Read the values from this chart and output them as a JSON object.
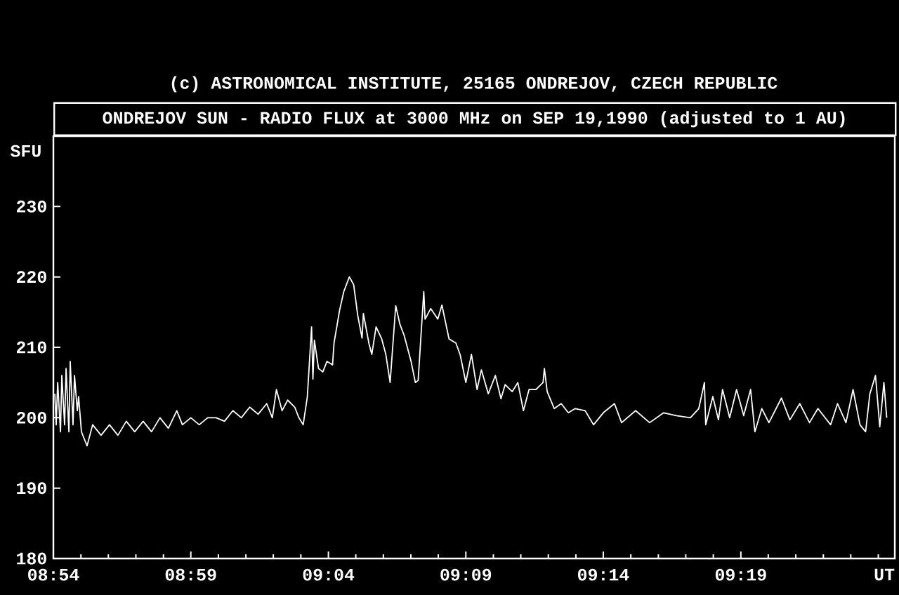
{
  "chart_data": {
    "type": "line",
    "title": "(c) ASTRONOMICAL INSTITUTE, 25165 ONDREJOV, CZECH REPUBLIC",
    "subtitle": "ONDREJOV SUN - RADIO FLUX at 3000 MHz on SEP 19,1990 (adjusted to 1 AU)",
    "ylabel": "SFU",
    "x": [
      8.9009,
      8.9017,
      8.9026,
      8.9043,
      8.9051,
      8.9068,
      8.9077,
      8.9094,
      8.9102,
      8.9119,
      8.9128,
      8.9145,
      8.9153,
      8.917,
      8.9204,
      8.9238,
      8.9289,
      8.934,
      8.9391,
      8.9442,
      8.9493,
      8.9544,
      8.9595,
      8.9646,
      8.9697,
      8.9748,
      8.9782,
      8.9833,
      8.9884,
      8.9935,
      8.9986,
      9.0037,
      9.0088,
      9.0139,
      9.019,
      9.0241,
      9.0293,
      9.0327,
      9.0352,
      9.0386,
      9.042,
      9.0463,
      9.0488,
      9.0514,
      9.0539,
      9.0565,
      9.0573,
      9.0582,
      9.0607,
      9.0633,
      9.0658,
      9.0692,
      9.0701,
      9.0735,
      9.076,
      9.0794,
      9.082,
      9.0845,
      9.0871,
      9.0879,
      9.0913,
      9.093,
      9.0956,
      9.099,
      9.1015,
      9.1041,
      9.1075,
      9.11,
      9.1126,
      9.1168,
      9.1194,
      9.1211,
      9.1245,
      9.1253,
      9.1287,
      9.133,
      9.1355,
      9.1398,
      9.144,
      9.1466,
      9.15,
      9.1534,
      9.1568,
      9.1594,
      9.1636,
      9.1679,
      9.1713,
      9.1738,
      9.1781,
      9.1815,
      9.1849,
      9.1883,
      9.1925,
      9.1968,
      9.1976,
      9.1993,
      9.2036,
      9.2078,
      9.2121,
      9.2163,
      9.2223,
      9.2274,
      9.2333,
      9.2401,
      9.2444,
      9.2529,
      9.2614,
      9.2699,
      9.2776,
      9.2861,
      9.2912,
      9.2946,
      9.2954,
      9.2997,
      9.3031,
      9.3056,
      9.3099,
      9.3141,
      9.3184,
      9.3226,
      9.3252,
      9.3294,
      9.3337,
      9.3413,
      9.3464,
      9.3524,
      9.3583,
      9.3634,
      9.3711,
      9.3753,
      9.3804,
      9.3847,
      9.3889,
      9.3923,
      9.3949,
      9.3983,
      9.4009,
      9.4034,
      9.4051
    ],
    "series": [
      {
        "color": "#ffffff",
        "values": [
          203.4,
          199,
          205,
          198,
          206,
          199,
          207,
          198,
          208,
          199,
          206,
          201,
          203,
          198,
          196,
          199,
          197.5,
          199,
          197.5,
          199.5,
          198,
          199.5,
          198,
          200,
          198.5,
          201,
          199,
          200,
          199,
          200,
          200,
          199.5,
          201,
          200,
          201.5,
          200.5,
          202,
          200,
          204,
          201,
          202.5,
          201.5,
          200,
          199,
          202.9,
          212.9,
          205.5,
          211,
          207,
          206.5,
          208,
          207.5,
          210.6,
          215.3,
          217.9,
          220,
          218.9,
          214.5,
          211.3,
          214.8,
          210.5,
          209,
          212.9,
          211.2,
          209,
          205,
          215.9,
          213.3,
          211.7,
          208,
          205,
          205.3,
          217.9,
          214,
          215.5,
          214,
          216,
          211.2,
          210.6,
          208.9,
          205,
          209,
          204,
          206.8,
          203.4,
          206,
          202.7,
          204.7,
          203.7,
          205,
          201,
          204,
          204,
          205,
          207,
          203.7,
          201.3,
          202,
          200.7,
          201.3,
          201,
          199,
          200.7,
          202,
          199.3,
          201,
          199.3,
          200.7,
          200.3,
          200,
          201.3,
          205,
          199,
          203,
          199.7,
          204,
          200,
          204,
          200.3,
          204,
          198,
          201.3,
          199.3,
          202.8,
          199.7,
          202,
          199.3,
          201.3,
          199,
          202,
          199.3,
          204,
          199,
          198,
          203.4,
          206,
          198.7,
          205,
          200
        ]
      }
    ],
    "xlim": [
      8.9,
      9.41
    ],
    "xticks": [
      {
        "value": 8.9,
        "label": "08:54"
      },
      {
        "value": 8.9167,
        "label": null
      },
      {
        "value": 8.9333,
        "label": null
      },
      {
        "value": 8.95,
        "label": null
      },
      {
        "value": 8.9667,
        "label": null
      },
      {
        "value": 8.9833,
        "label": "08:59"
      },
      {
        "value": 9.0,
        "label": null
      },
      {
        "value": 9.0167,
        "label": null
      },
      {
        "value": 9.0333,
        "label": null
      },
      {
        "value": 9.05,
        "label": null
      },
      {
        "value": 9.0667,
        "label": "09:04"
      },
      {
        "value": 9.0833,
        "label": null
      },
      {
        "value": 9.1,
        "label": null
      },
      {
        "value": 9.1167,
        "label": null
      },
      {
        "value": 9.1333,
        "label": null
      },
      {
        "value": 9.15,
        "label": "09:09"
      },
      {
        "value": 9.1667,
        "label": null
      },
      {
        "value": 9.1833,
        "label": null
      },
      {
        "value": 9.2,
        "label": null
      },
      {
        "value": 9.2167,
        "label": null
      },
      {
        "value": 9.2333,
        "label": "09:14"
      },
      {
        "value": 9.25,
        "label": null
      },
      {
        "value": 9.2667,
        "label": null
      },
      {
        "value": 9.2833,
        "label": null
      },
      {
        "value": 9.3,
        "label": null
      },
      {
        "value": 9.3167,
        "label": "09:19"
      },
      {
        "value": 9.3333,
        "label": null
      },
      {
        "value": 9.35,
        "label": null
      },
      {
        "value": 9.3667,
        "label": null
      },
      {
        "value": 9.3833,
        "label": null
      },
      {
        "value": 9.4,
        "label": null
      },
      {
        "value": 9.41,
        "label": "UT"
      }
    ],
    "ylim": [
      180,
      240
    ],
    "yticks": [
      180,
      190,
      200,
      210,
      220,
      230
    ],
    "grid": false,
    "marker": "none",
    "line_style": "solid"
  }
}
